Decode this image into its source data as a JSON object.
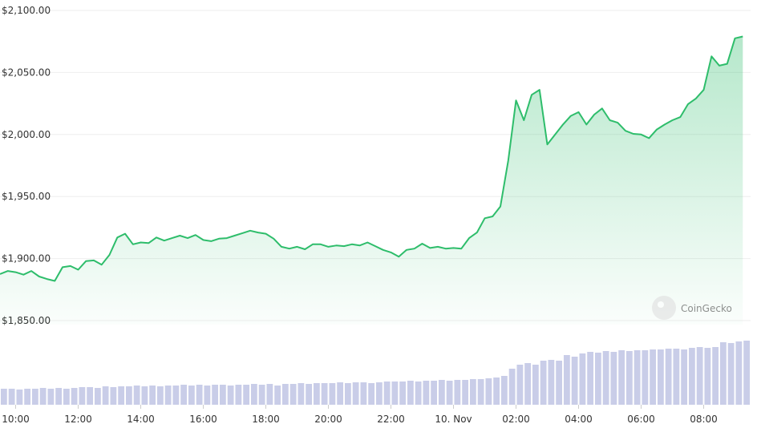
{
  "chart_data": {
    "type": "line",
    "watermark": "CoinGecko",
    "x": [
      9.5,
      9.75,
      10,
      10.25,
      10.5,
      10.75,
      11,
      11.25,
      11.5,
      11.75,
      12,
      12.25,
      12.5,
      12.75,
      13,
      13.25,
      13.5,
      13.75,
      14,
      14.25,
      14.5,
      14.75,
      15,
      15.25,
      15.5,
      15.75,
      16,
      16.25,
      16.5,
      16.75,
      17,
      17.25,
      17.5,
      17.75,
      18,
      18.25,
      18.5,
      18.75,
      19,
      19.25,
      19.5,
      19.75,
      20,
      20.25,
      20.5,
      20.75,
      21,
      21.25,
      21.5,
      21.75,
      22,
      22.25,
      22.5,
      22.75,
      23,
      23.25,
      23.5,
      23.75,
      24,
      24.25,
      24.5,
      24.75,
      25,
      25.25,
      25.5,
      25.75,
      26,
      26.25,
      26.5,
      26.75,
      27,
      27.25,
      27.5,
      27.75,
      28,
      28.25,
      28.5,
      28.75,
      29,
      29.25,
      29.5,
      29.75,
      30,
      30.25,
      30.5,
      30.75,
      31,
      31.25,
      31.5,
      31.75,
      32,
      32.25,
      32.5,
      32.75,
      33,
      33.25
    ],
    "series": [
      {
        "name": "Price",
        "color": "#2ebd6b",
        "values": [
          1887.5,
          1890,
          1889,
          1887,
          1890,
          1885.5,
          1883.5,
          1882,
          1893,
          1894,
          1891,
          1898,
          1898.5,
          1895,
          1903,
          1917,
          1920,
          1911.5,
          1913,
          1912.5,
          1917,
          1914.5,
          1916.5,
          1918.5,
          1916.5,
          1919,
          1915,
          1914,
          1916,
          1916.5,
          1918.5,
          1920.5,
          1922.5,
          1921,
          1920,
          1916,
          1909.5,
          1908,
          1909.5,
          1907.5,
          1911.5,
          1911.5,
          1909.5,
          1910.5,
          1910,
          1911.5,
          1910.5,
          1913,
          1910,
          1907,
          1905,
          1901.5,
          1907,
          1908,
          1912,
          1908.5,
          1909.5,
          1908,
          1908.5,
          1908,
          1916.5,
          1921,
          1932.5,
          1934,
          1942,
          1979,
          2027.5,
          2011.5,
          2032,
          2036,
          1992,
          2000,
          2008,
          2015,
          2018,
          2008,
          2016,
          2021,
          2011.5,
          2009.5,
          2003,
          2000.5,
          2000,
          1997,
          2004,
          2008,
          2011.5,
          2014,
          2024.5,
          2029,
          2036,
          2063,
          2055.5,
          2057,
          2077.5,
          2079
        ]
      },
      {
        "name": "Volume",
        "color": "#c9cde8",
        "axis": "y2",
        "values": [
          20,
          20,
          19,
          20,
          20,
          21,
          20,
          21,
          20,
          21,
          22,
          22,
          21,
          23,
          22,
          23,
          23,
          24,
          23,
          24,
          23,
          24,
          24,
          25,
          24,
          25,
          24,
          25,
          25,
          24,
          25,
          25,
          26,
          25,
          26,
          24,
          26,
          26,
          27,
          26,
          27,
          27,
          27,
          28,
          27,
          28,
          28,
          27,
          28,
          29,
          29,
          29,
          30,
          29,
          30,
          30,
          31,
          30,
          31,
          31,
          32,
          32,
          33,
          34,
          36,
          45,
          50,
          52,
          50,
          55,
          56,
          55,
          62,
          60,
          64,
          66,
          65,
          67,
          66,
          68,
          67,
          68,
          68,
          69,
          69,
          70,
          70,
          69,
          71,
          72,
          71,
          72,
          78,
          77,
          79,
          80
        ]
      }
    ],
    "xlim": [
      9.5,
      33.5
    ],
    "xticks": [
      {
        "value": 10,
        "label": "10:00"
      },
      {
        "value": 12,
        "label": "12:00"
      },
      {
        "value": 14,
        "label": "14:00"
      },
      {
        "value": 16,
        "label": "16:00"
      },
      {
        "value": 18,
        "label": "18:00"
      },
      {
        "value": 20,
        "label": "20:00"
      },
      {
        "value": 22,
        "label": "22:00"
      },
      {
        "value": 24,
        "label": "10. Nov"
      },
      {
        "value": 26,
        "label": "02:00"
      },
      {
        "value": 28,
        "label": "04:00"
      },
      {
        "value": 30,
        "label": "06:00"
      },
      {
        "value": 32,
        "label": "08:00"
      }
    ],
    "ylim": [
      1850,
      2100
    ],
    "yticks": [
      {
        "value": 1850,
        "label": "$1,850.00"
      },
      {
        "value": 1900,
        "label": "$1,900.00"
      },
      {
        "value": 1950,
        "label": "$1,950.00"
      },
      {
        "value": 2000,
        "label": "$2,000.00"
      },
      {
        "value": 2050,
        "label": "$2,050.00"
      },
      {
        "value": 2100,
        "label": "$2,100.00"
      }
    ],
    "y2lim": [
      0,
      100
    ],
    "grid": true
  }
}
